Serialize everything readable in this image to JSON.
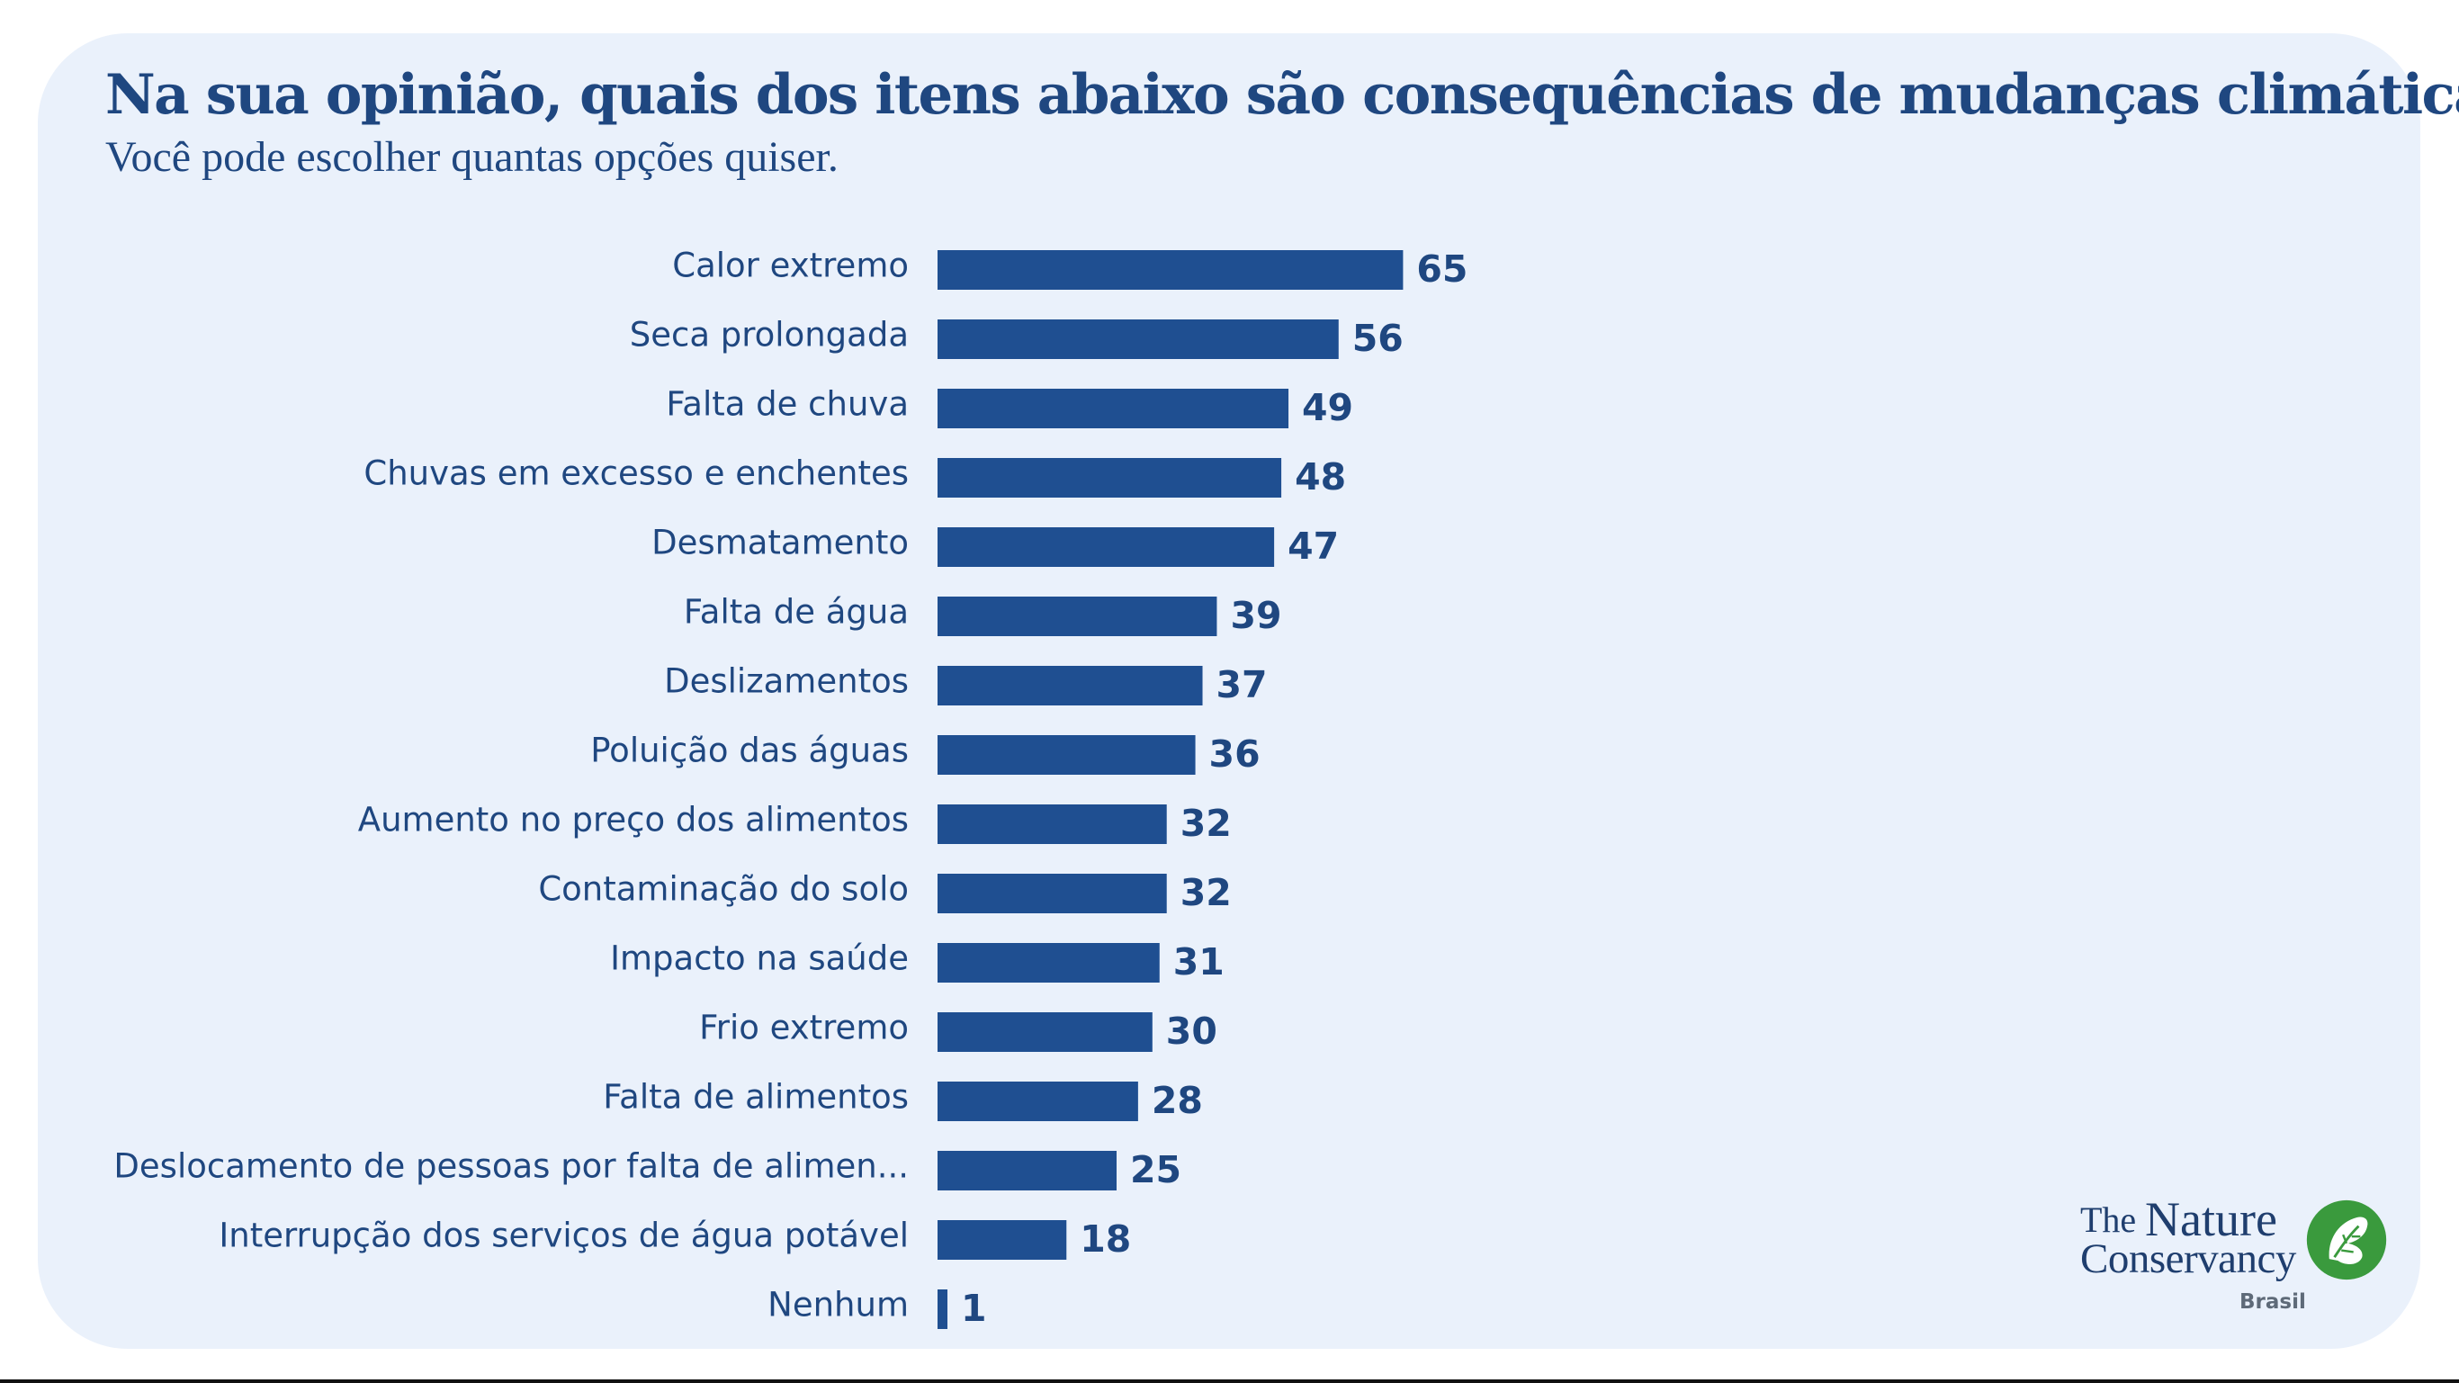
{
  "header": {
    "title": "Na sua opinião, quais dos itens abaixo são consequências de mudanças climáticas?",
    "subtitle": "Você pode escolher quantas opções quiser."
  },
  "logo": {
    "the": "The",
    "nature": "Nature",
    "conservancy": "Conservancy",
    "country": "Brasil",
    "icon": "leaf-icon",
    "color": "#3a9a3d"
  },
  "colors": {
    "bar": "#1f4f91",
    "text": "#1f4780",
    "background": "#eaf1fb"
  },
  "chart_data": {
    "type": "bar",
    "orientation": "horizontal",
    "categories": [
      "Calor extremo",
      "Seca prolongada",
      "Falta de chuva",
      "Chuvas em excesso e enchentes",
      "Desmatamento",
      "Falta de água",
      "Deslizamentos",
      "Poluição das águas",
      "Aumento no preço dos alimentos",
      "Contaminação do solo",
      "Impacto na saúde",
      "Frio extremo",
      "Falta de alimentos",
      "Deslocamento de pessoas por falta de alimen...",
      "Interrupção dos serviços de água potável",
      "Nenhum"
    ],
    "values": [
      65,
      56,
      49,
      48,
      47,
      39,
      37,
      36,
      32,
      32,
      31,
      30,
      28,
      25,
      18,
      1
    ],
    "grid": false,
    "legend": "none"
  }
}
